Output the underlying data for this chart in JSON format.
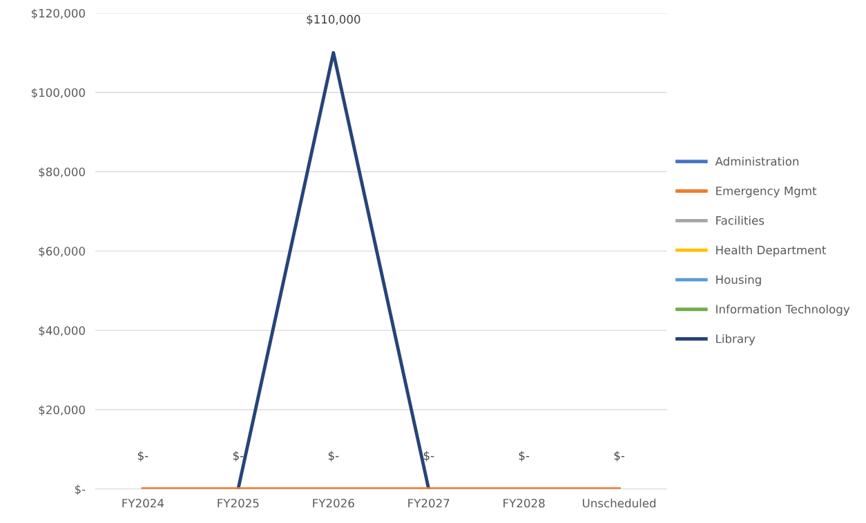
{
  "chart_data": {
    "type": "line",
    "categories": [
      "FY2024",
      "FY2025",
      "FY2026",
      "FY2027",
      "FY2028",
      "Unscheduled"
    ],
    "series": [
      {
        "name": "Administration",
        "color": "#4472c4",
        "values": [
          null,
          null,
          null,
          null,
          null,
          null
        ]
      },
      {
        "name": "Emergency Mgmt",
        "color": "#ed7d31",
        "values": [
          0,
          0,
          0,
          0,
          0,
          0
        ],
        "value_labels": [
          "$-",
          "$-",
          "$-",
          "$-",
          "$-",
          "$-"
        ]
      },
      {
        "name": "Facilities",
        "color": "#a5a5a5",
        "values": [
          null,
          null,
          null,
          null,
          null,
          null
        ]
      },
      {
        "name": "Health Department",
        "color": "#ffc000",
        "values": [
          null,
          null,
          null,
          null,
          null,
          null
        ]
      },
      {
        "name": "Housing",
        "color": "#5b9bd5",
        "values": [
          null,
          null,
          null,
          null,
          null,
          null
        ]
      },
      {
        "name": "Information Technology",
        "color": "#70ad47",
        "values": [
          null,
          null,
          null,
          null,
          null,
          null
        ]
      },
      {
        "name": "Library",
        "color": "#264478",
        "values": [
          null,
          0,
          110000,
          0,
          null,
          null
        ],
        "value_labels": [
          null,
          null,
          "$110,000",
          null,
          null,
          null
        ]
      }
    ],
    "ylim": [
      0,
      120000
    ],
    "yticks": [
      {
        "value": 0,
        "label": "$-"
      },
      {
        "value": 20000,
        "label": "$20,000"
      },
      {
        "value": 40000,
        "label": "$40,000"
      },
      {
        "value": 60000,
        "label": "$60,000"
      },
      {
        "value": 80000,
        "label": "$80,000"
      },
      {
        "value": 100000,
        "label": "$100,000"
      },
      {
        "value": 120000,
        "label": "$120,000"
      }
    ],
    "grid": "y",
    "legend": "right",
    "marker": "none",
    "line_style": "solid"
  }
}
